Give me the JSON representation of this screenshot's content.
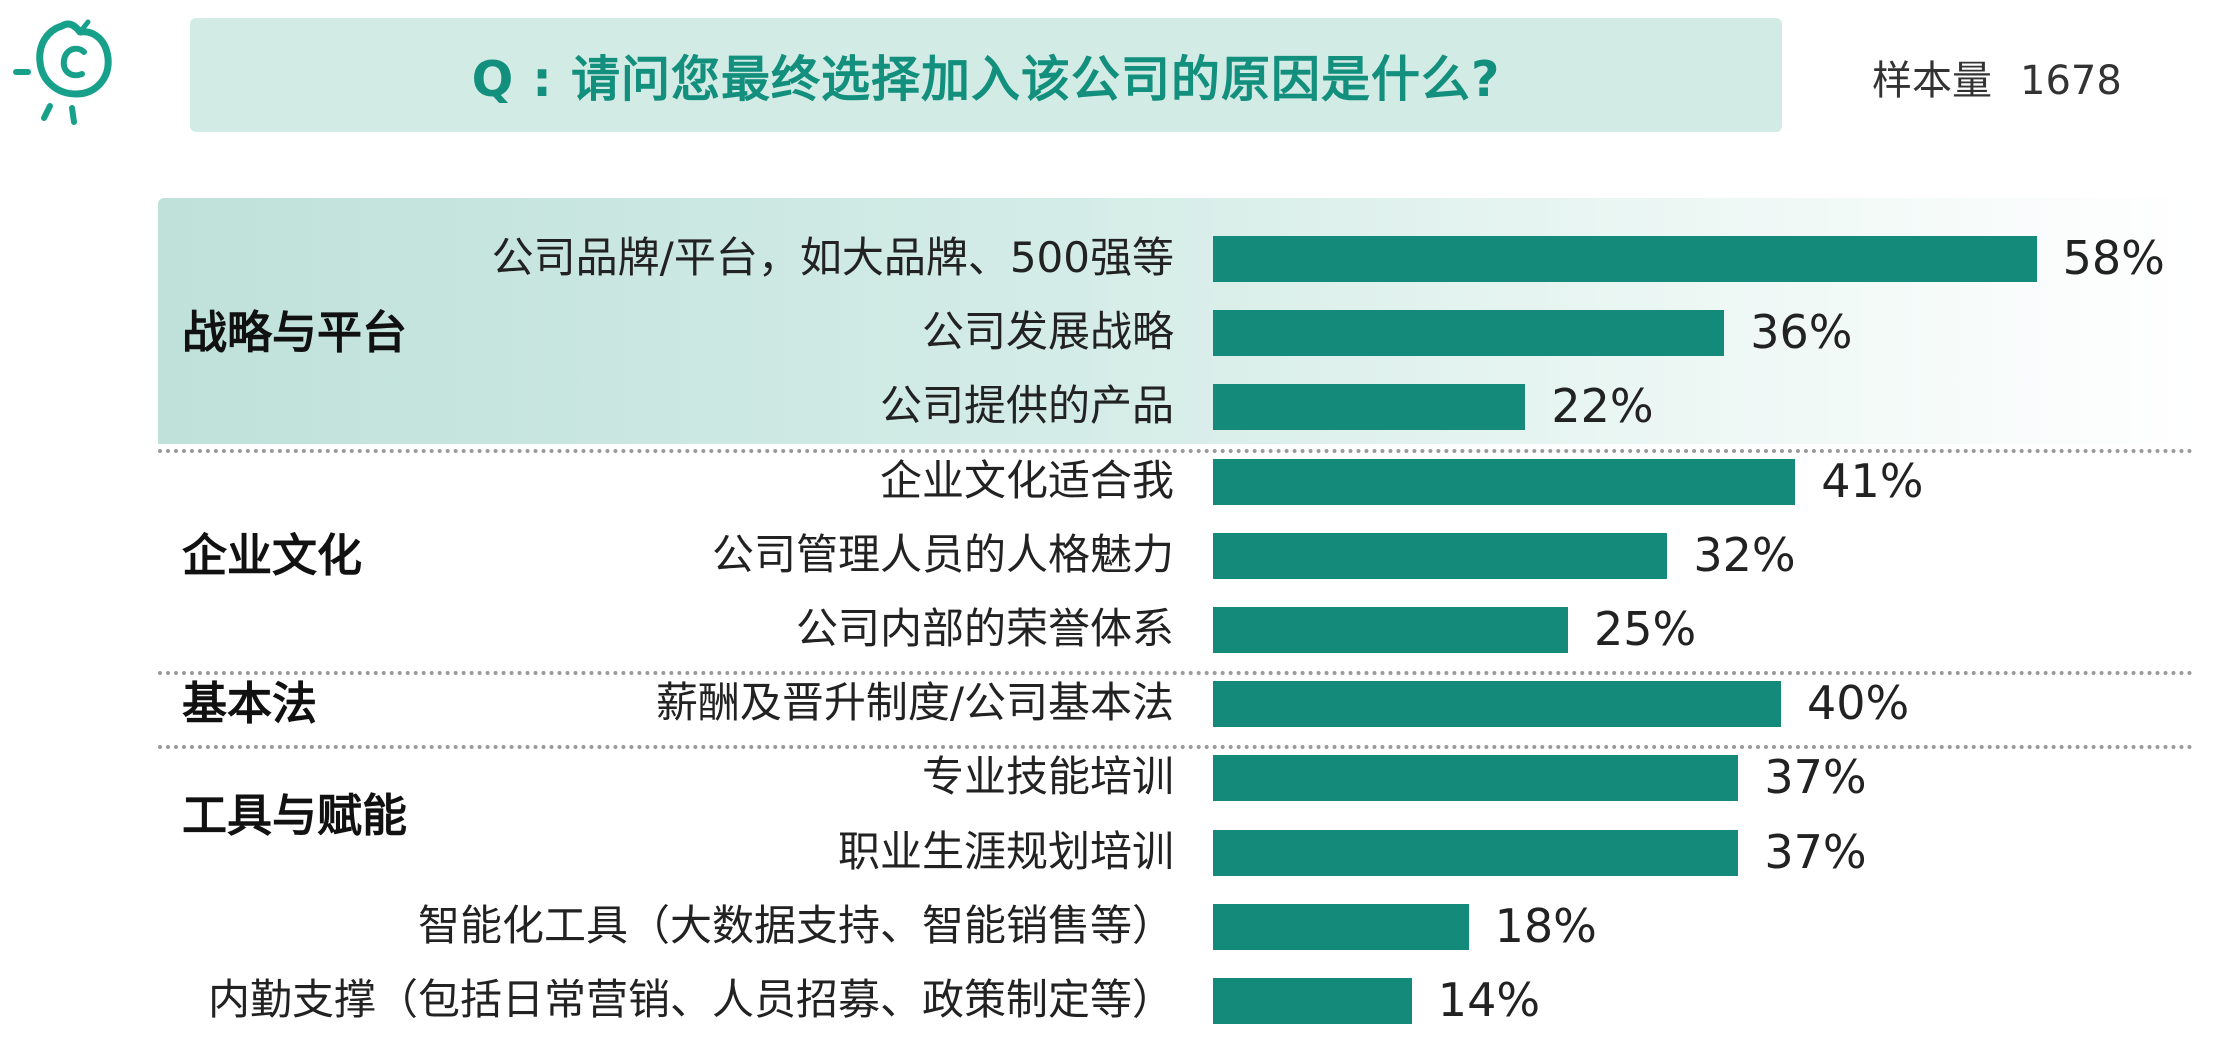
{
  "header": {
    "question": "Q : 请问您最终选择加入该公司的原因是什么?",
    "sample_label": "样本量",
    "sample_size": "1678"
  },
  "colors": {
    "accent": "#138f7d",
    "bar": "#138a7a",
    "highlight": "#cfe9e3"
  },
  "logo": {
    "icon": "sprout-c-mascot-icon"
  },
  "chart_data": {
    "type": "bar",
    "orientation": "horizontal",
    "title": "",
    "xlabel": "",
    "ylabel": "",
    "unit": "%",
    "groups": [
      {
        "name": "战略与平台",
        "highlighted": true,
        "items": [
          {
            "label": "公司品牌/平台，如大品牌、500强等",
            "value": 58,
            "display": "58%"
          },
          {
            "label": "公司发展战略",
            "value": 36,
            "display": "36%"
          },
          {
            "label": "公司提供的产品",
            "value": 22,
            "display": "22%"
          }
        ]
      },
      {
        "name": "企业文化",
        "items": [
          {
            "label": "企业文化适合我",
            "value": 41,
            "display": "41%"
          },
          {
            "label": "公司管理人员的人格魅力",
            "value": 32,
            "display": "32%"
          },
          {
            "label": "公司内部的荣誉体系",
            "value": 25,
            "display": "25%"
          }
        ]
      },
      {
        "name": "基本法",
        "items": [
          {
            "label": "薪酬及晋升制度/公司基本法",
            "value": 40,
            "display": "40%"
          }
        ]
      },
      {
        "name": "工具与赋能",
        "items": [
          {
            "label": "专业技能培训",
            "value": 37,
            "display": "37%"
          },
          {
            "label": "职业生涯规划培训",
            "value": 37,
            "display": "37%"
          },
          {
            "label": "智能化工具（大数据支持、智能销售等）",
            "value": 18,
            "display": "18%"
          },
          {
            "label": "内勤支撑（包括日常营销、人员招募、政策制定等）",
            "value": 14,
            "display": "14%"
          }
        ]
      }
    ]
  }
}
